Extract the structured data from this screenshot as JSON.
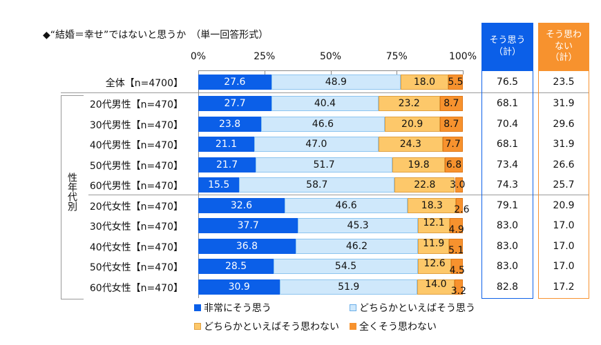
{
  "chart_data": {
    "type": "bar",
    "orientation": "horizontal",
    "stacked": true,
    "title": "◆“結婚＝幸せ”ではないと思うか　（単一回答形式）",
    "xlim": [
      0,
      100
    ],
    "xticks": [
      "0%",
      "25%",
      "50%",
      "75%",
      "100%"
    ],
    "group_label": "性年代別",
    "categories": [
      "全体【n=4700】",
      "20代男性【n=470】",
      "30代男性【n=470】",
      "40代男性【n=470】",
      "50代男性【n=470】",
      "60代男性【n=470】",
      "20代女性【n=470】",
      "30代女性【n=470】",
      "40代女性【n=470】",
      "50代女性【n=470】",
      "60代女性【n=470】"
    ],
    "series": [
      {
        "name": "非常にそう思う",
        "color": "#0b5fe8",
        "values": [
          27.6,
          27.7,
          23.8,
          21.1,
          21.7,
          15.5,
          32.6,
          37.7,
          36.8,
          28.5,
          30.9
        ]
      },
      {
        "name": "どちらかといえばそう思う",
        "color": "#cfe8fb",
        "values": [
          48.9,
          40.4,
          46.6,
          47.0,
          51.7,
          58.7,
          46.6,
          45.3,
          46.2,
          54.5,
          51.9
        ]
      },
      {
        "name": "どちらかといえばそう思わない",
        "color": "#fdc86a",
        "values": [
          18.0,
          23.2,
          20.9,
          24.3,
          19.8,
          22.8,
          18.3,
          12.1,
          11.9,
          12.6,
          14.0
        ]
      },
      {
        "name": "全くそう思わない",
        "color": "#f7922e",
        "values": [
          5.5,
          8.7,
          8.7,
          7.7,
          6.8,
          3.0,
          2.6,
          4.9,
          5.1,
          4.5,
          3.2
        ]
      }
    ],
    "totals": [
      {
        "label": "そう思う（計）",
        "color": "#0b5fe8",
        "values": [
          76.5,
          68.1,
          70.4,
          68.1,
          73.4,
          74.3,
          79.1,
          83.0,
          83.0,
          83.0,
          82.8
        ]
      },
      {
        "label": "そう思わない（計）",
        "color": "#f7922e",
        "values": [
          23.5,
          31.9,
          29.6,
          31.9,
          26.6,
          25.7,
          20.9,
          17.0,
          17.0,
          17.0,
          17.2
        ]
      }
    ],
    "legend": "bottom"
  }
}
